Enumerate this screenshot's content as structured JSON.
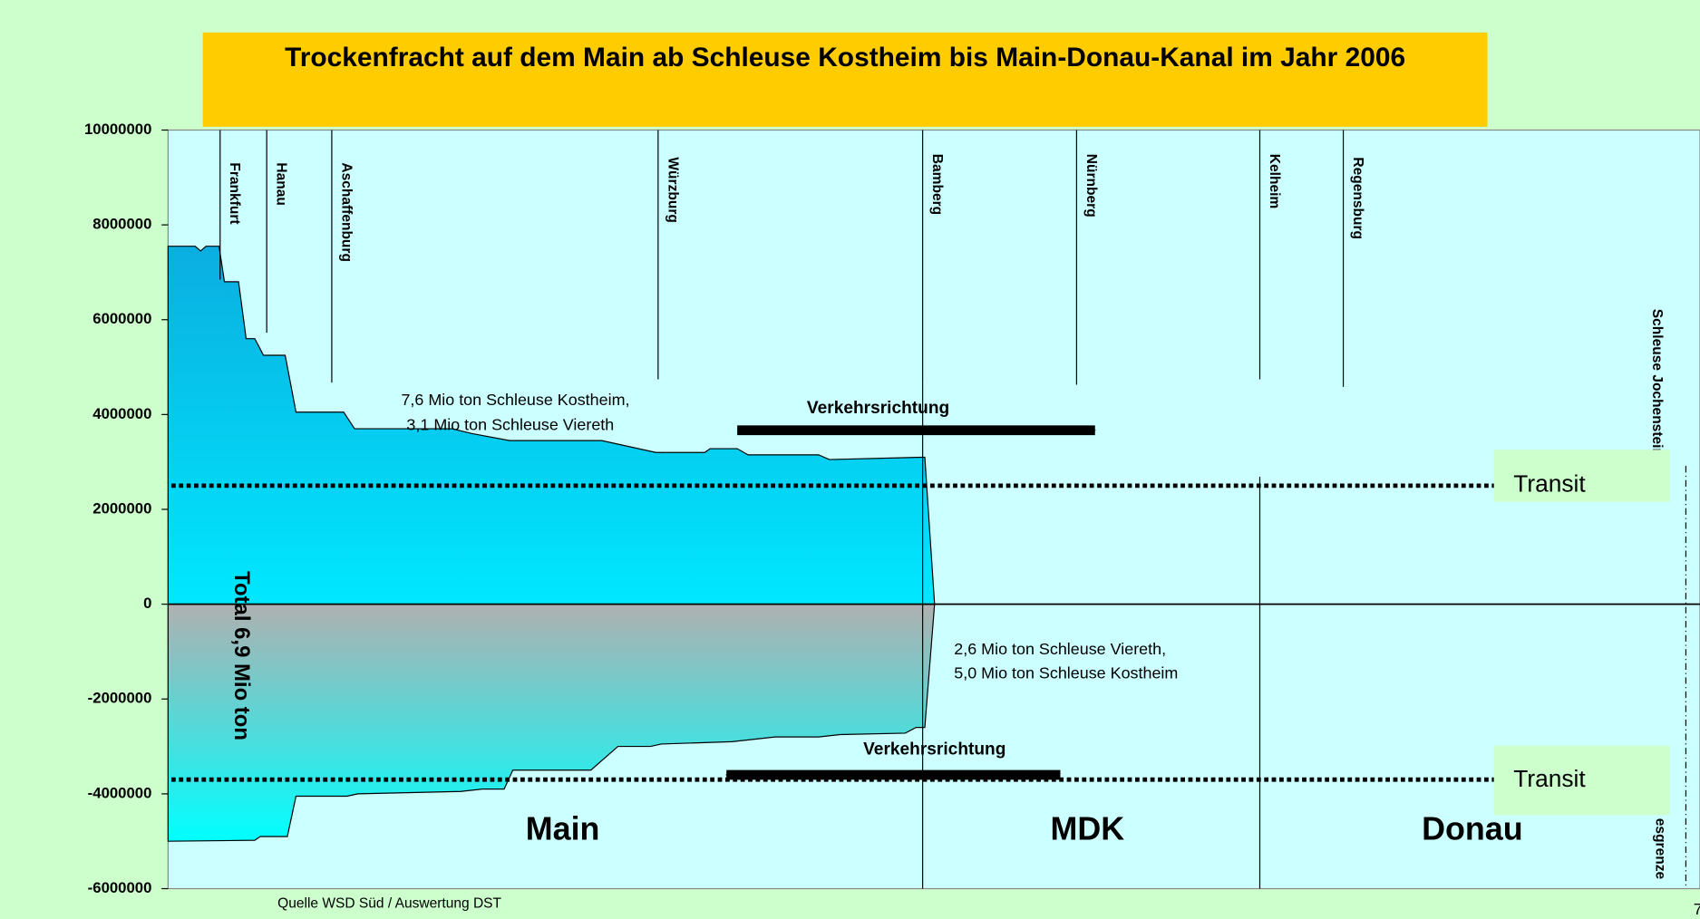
{
  "chart_data": {
    "type": "area",
    "title": "Trockenfracht auf dem Main ab Schleuse Kostheim bis Main-Donau-Kanal im Jahr 2006",
    "xlim": [
      0,
      1400
    ],
    "ylim": [
      -6000000,
      10000000
    ],
    "yticks": [
      -6000000,
      -4000000,
      -2000000,
      0,
      2000000,
      4000000,
      6000000,
      8000000,
      10000000
    ],
    "series": [
      {
        "colors": [
          "#0aaee0",
          "#00e8ff"
        ],
        "x": [
          0,
          0,
          25,
          30,
          35,
          47,
          52,
          65,
          72,
          80,
          88,
          108,
          118,
          162,
          172,
          262,
          280,
          315,
          400,
          450,
          495,
          500,
          525,
          535,
          600,
          610,
          698,
          707
        ],
        "values": [
          0,
          7550000,
          7550000,
          7450000,
          7550000,
          7550000,
          6800000,
          6800000,
          5600000,
          5600000,
          5250000,
          5250000,
          4050000,
          4050000,
          3700000,
          3700000,
          3600000,
          3450000,
          3450000,
          3200000,
          3200000,
          3280000,
          3280000,
          3150000,
          3150000,
          3050000,
          3100000,
          0
        ]
      },
      {
        "colors": [
          "#b0b0b0",
          "#00ffff"
        ],
        "x": [
          0,
          0,
          80,
          85,
          110,
          118,
          165,
          175,
          270,
          290,
          310,
          318,
          390,
          415,
          445,
          455,
          520,
          560,
          600,
          620,
          680,
          690,
          698,
          707
        ],
        "values": [
          0,
          -5000000,
          -4980000,
          -4900000,
          -4900000,
          -4050000,
          -4050000,
          -4000000,
          -3950000,
          -3900000,
          -3900000,
          -3500000,
          -3500000,
          -3000000,
          -3000000,
          -2950000,
          -2900000,
          -2800000,
          -2800000,
          -2750000,
          -2720000,
          -2600000,
          -2600000,
          0
        ]
      }
    ],
    "reference_lines": [
      2500000,
      -3700000
    ],
    "markers": [
      {
        "label": "Frankfurt",
        "x": 48
      },
      {
        "label": "Hanau",
        "x": 91
      },
      {
        "label": "Aschaffenburg",
        "x": 151
      },
      {
        "label": "Würzburg",
        "x": 452
      },
      {
        "label": "Bamberg",
        "x": 696
      },
      {
        "label": "Nürnberg",
        "x": 838
      },
      {
        "label": "Kelheim",
        "x": 1007
      },
      {
        "label": "Regensburg",
        "x": 1084
      },
      {
        "label": "Schleuse Jochenstein",
        "x": 1400
      }
    ],
    "upper_note": [
      "7,6  Mio ton Schleuse Kostheim,",
      "3,1 Mio ton Schleuse Viereth"
    ],
    "lower_note": [
      "2,6 Mio ton   Schleuse Viereth,",
      "5,0 Mio ton   Schleuse Kostheim"
    ],
    "direction_labels": [
      "Verkehrsrichtung",
      "Verkehrsrichtung"
    ],
    "transit_labels": [
      "Transit",
      "Transit"
    ],
    "total_label": "Total 6,9 Mio ton",
    "sections": [
      "Main",
      "MDK",
      "Donau"
    ],
    "border_label": "esgrenze",
    "source": "Quelle WSD Süd / Auswertung DST",
    "page_number": "7"
  }
}
